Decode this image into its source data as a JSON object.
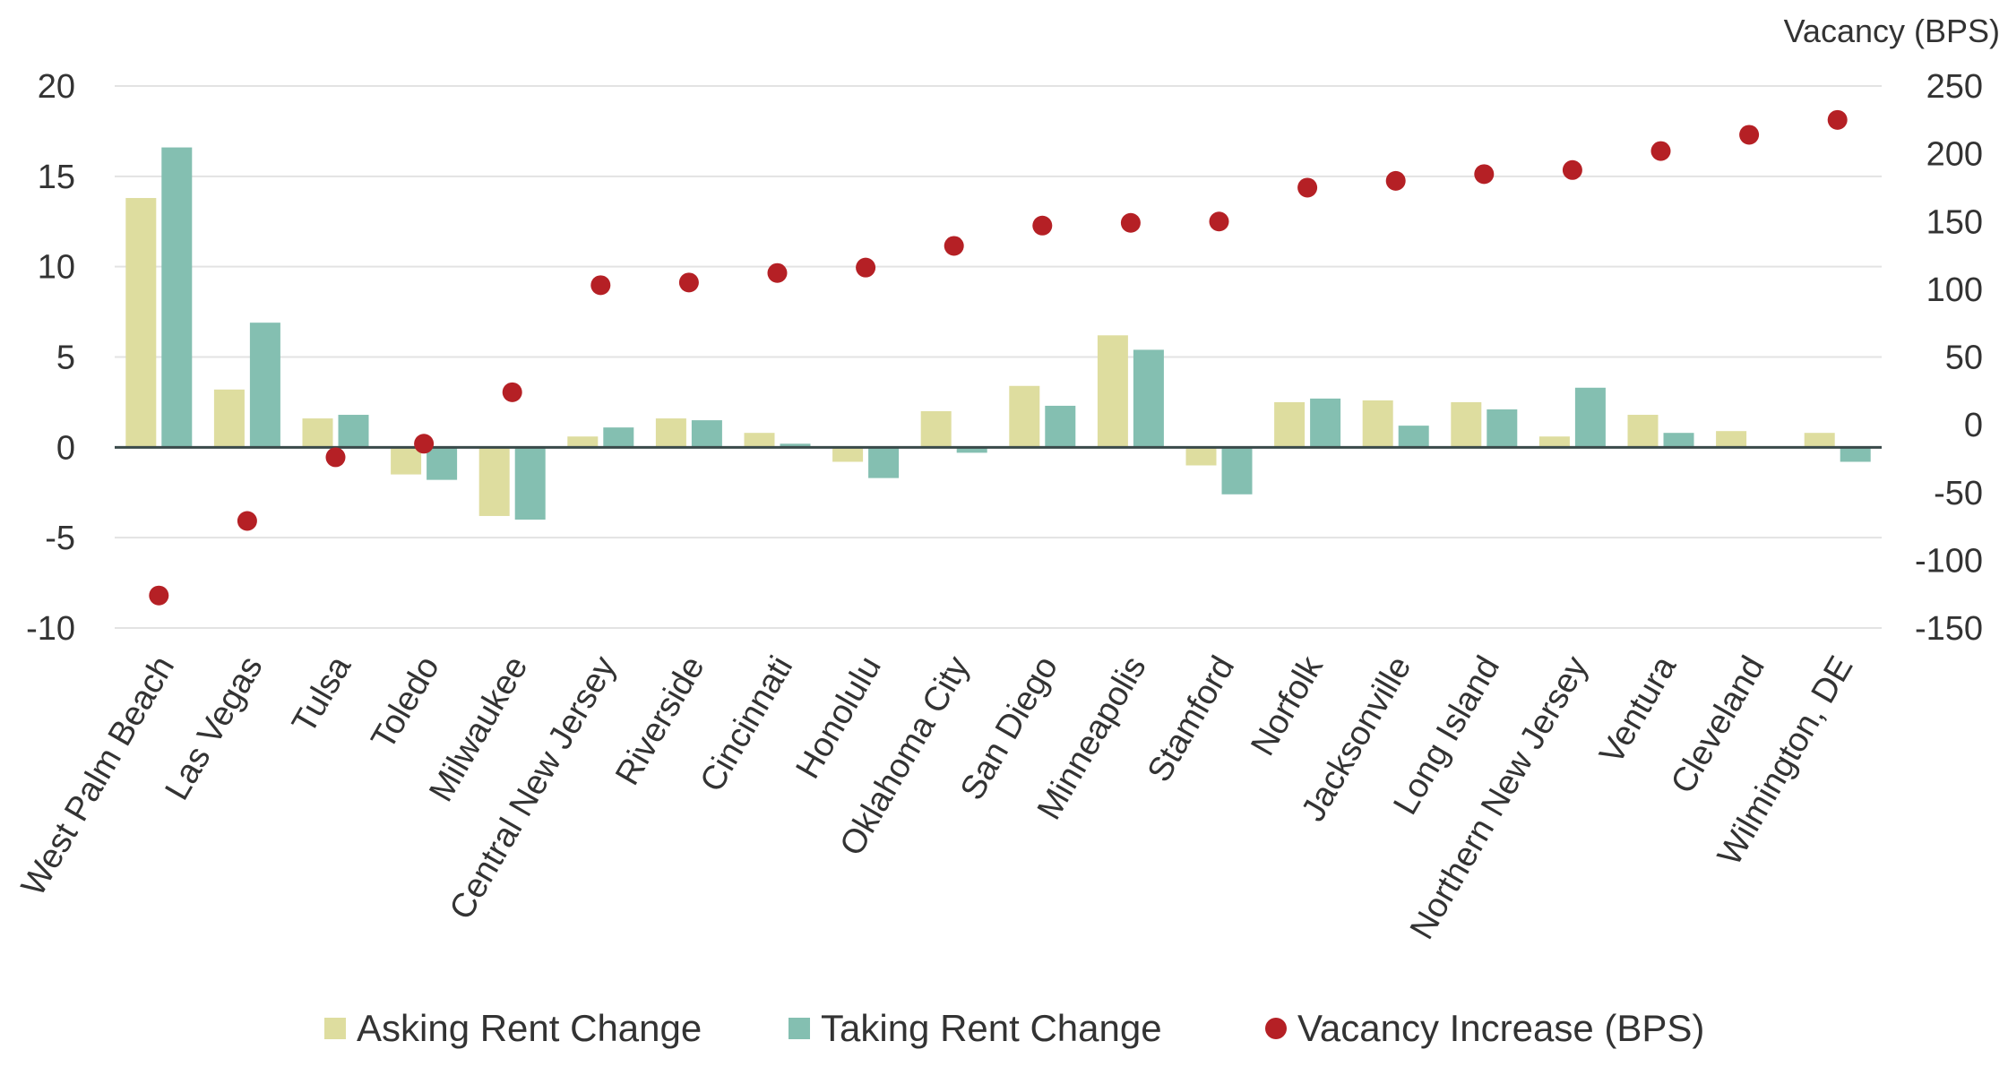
{
  "chart_data": {
    "type": "bar",
    "categories": [
      "West Palm Beach",
      "Las Vegas",
      "Tulsa",
      "Toledo",
      "Milwaukee",
      "Central New Jersey",
      "Riverside",
      "Cincinnati",
      "Honolulu",
      "Oklahoma City",
      "San Diego",
      "Minneapolis",
      "Stamford",
      "Norfolk",
      "Jacksonville",
      "Long Island",
      "Northern New Jersey",
      "Ventura",
      "Cleveland",
      "Wilmington, DE"
    ],
    "series": [
      {
        "name": "Asking Rent Change",
        "type": "bar",
        "axis": "left",
        "color": "#dedd9f",
        "values": [
          13.8,
          3.2,
          1.6,
          -1.5,
          -3.8,
          0.6,
          1.6,
          0.8,
          -0.8,
          2.0,
          3.4,
          6.2,
          -1.0,
          2.5,
          2.6,
          2.5,
          0.6,
          1.8,
          0.9,
          0.8
        ]
      },
      {
        "name": "Taking Rent Change",
        "type": "bar",
        "axis": "left",
        "color": "#84bfb1",
        "values": [
          16.6,
          6.9,
          1.8,
          -1.8,
          -4.0,
          1.1,
          1.5,
          0.2,
          -1.7,
          -0.3,
          2.3,
          5.4,
          -2.6,
          2.7,
          1.2,
          2.1,
          3.3,
          0.8,
          0.0,
          -0.8
        ]
      },
      {
        "name": "Vacancy Increase (BPS)",
        "type": "scatter",
        "axis": "right",
        "color": "#b52025",
        "values": [
          -126,
          -71,
          -24,
          -14,
          24,
          103,
          105,
          112,
          116,
          132,
          147,
          149,
          150,
          175,
          180,
          185,
          188,
          202,
          214,
          225
        ]
      }
    ],
    "ylim": [
      -10,
      20
    ],
    "yticks": [
      "20",
      "15",
      "10",
      "5",
      "0",
      "-5",
      "-10"
    ],
    "yticks_values": [
      20,
      15,
      10,
      5,
      0,
      -5,
      -10
    ],
    "y2label": "Vacancy (BPS)",
    "y2lim": [
      -150,
      250
    ],
    "y2ticks": [
      "250",
      "200",
      "150",
      "100",
      "50",
      "0",
      "-50",
      "-100",
      "-150"
    ],
    "y2ticks_values": [
      250,
      200,
      150,
      100,
      50,
      0,
      -50,
      -100,
      -150
    ],
    "grid": true,
    "legend_position": "bottom-center"
  }
}
